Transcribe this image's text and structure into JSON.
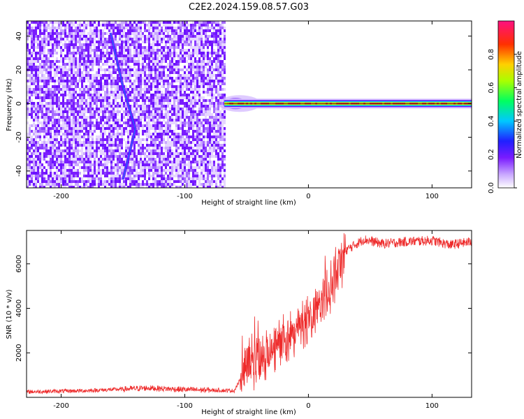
{
  "figure_title": "C2E2.2024.159.08.57.G03",
  "colors": {
    "snr_line": "#ee2a2a",
    "spectrogram_band_core": "#ff2020",
    "spectrogram_band_edge": "#6a00ff",
    "noise": "#8a3dff"
  },
  "chart_data": [
    {
      "type": "heatmap",
      "title": "C2E2.2024.159.08.57.G03",
      "xlabel": "Height of straight line (km)",
      "ylabel": "Frequency (Hz)",
      "xlim": [
        -228,
        132
      ],
      "ylim": [
        -50,
        49
      ],
      "x_ticks": [
        -200,
        -100,
        0,
        100
      ],
      "y_ticks": [
        -40,
        -20,
        0,
        20,
        40
      ],
      "colorbar": {
        "label": "Normalized spectral amplitude",
        "range": [
          0,
          1
        ],
        "ticks": [
          "0.0",
          "0.2",
          "0.4",
          "0.6",
          "0.8"
        ],
        "colormap": "rainbow (white-purple-blue-cyan-green-yellow-red-magenta)"
      },
      "regions": [
        {
          "name": "noise",
          "x_range": [
            -228,
            -68
          ],
          "description_values": {
            "frequency_range": [
              -50,
              49
            ]
          }
        },
        {
          "name": "carrier",
          "x_range": [
            -68,
            132
          ],
          "frequency": 0
        }
      ],
      "noise_streak": [
        [
          -160,
          42
        ],
        [
          -150,
          10
        ],
        [
          -140,
          -15
        ],
        [
          -150,
          -45
        ]
      ]
    },
    {
      "type": "line",
      "xlabel": "Height of straight line (km)",
      "ylabel": "SNR (10 * v/v)",
      "xlim": [
        -228,
        132
      ],
      "ylim": [
        0,
        7500
      ],
      "x_ticks": [
        -200,
        -100,
        0,
        100
      ],
      "y_ticks": [
        2000,
        4000,
        6000
      ],
      "series": [
        {
          "trend_x": [
            -228,
            -180,
            -130,
            -100,
            -60,
            -55,
            -50,
            -40,
            -30,
            -20,
            -10,
            0,
            10,
            20,
            30,
            45,
            60,
            80,
            100,
            115,
            132
          ],
          "trend_y": [
            250,
            300,
            420,
            350,
            300,
            800,
            1400,
            1800,
            2100,
            2500,
            3000,
            3500,
            4200,
            5200,
            6600,
            7100,
            6900,
            7000,
            7050,
            6850,
            7000
          ]
        }
      ]
    }
  ]
}
